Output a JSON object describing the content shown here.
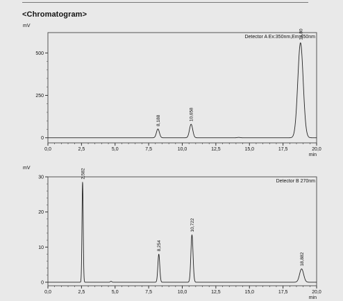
{
  "header": {
    "title": "<Chromatogram>"
  },
  "chart_data": [
    {
      "type": "line",
      "title": "",
      "ylabel": "mV",
      "xlabel": "min",
      "xlim": [
        0,
        20
      ],
      "ylim": [
        -30,
        620
      ],
      "x_ticks": [
        "0,0",
        "2,5",
        "5,0",
        "7,5",
        "10,0",
        "12,5",
        "15,0",
        "17,5",
        "20,0"
      ],
      "y_ticks": [
        0,
        250,
        500
      ],
      "grid": false,
      "legend": "top-right",
      "detector_label": "Detector A Ex:350nm,Em:450nm",
      "peaks": [
        {
          "label": "8,188",
          "rt": 8.188,
          "height": 52,
          "width": 0.11
        },
        {
          "label": "10,658",
          "rt": 10.658,
          "height": 80,
          "width": 0.12
        },
        {
          "label": "18,80",
          "rt": 18.8,
          "height": 560,
          "width": 0.2
        }
      ],
      "minor_bumps": [
        {
          "rt": 14.2,
          "height": 2,
          "width": 0.1
        }
      ]
    },
    {
      "type": "line",
      "title": "",
      "ylabel": "mV",
      "xlabel": "min",
      "xlim": [
        0,
        20
      ],
      "ylim": [
        -1,
        30
      ],
      "x_ticks": [
        "0,0",
        "2,5",
        "5,0",
        "7,5",
        "10,0",
        "12,5",
        "15,0",
        "17,5",
        "20,0"
      ],
      "y_ticks": [
        0,
        10,
        20,
        30
      ],
      "grid": false,
      "legend": "top-right",
      "detector_label": "Detector B 270nm",
      "peaks": [
        {
          "label": "2,582",
          "rt": 2.582,
          "height": 28.5,
          "width": 0.045
        },
        {
          "label": "8,254",
          "rt": 8.254,
          "height": 8,
          "width": 0.07
        },
        {
          "label": "10,722",
          "rt": 10.722,
          "height": 13.5,
          "width": 0.08
        },
        {
          "label": "18,882",
          "rt": 18.882,
          "height": 3.8,
          "width": 0.15
        }
      ],
      "minor_bumps": [
        {
          "rt": 4.7,
          "height": 0.25,
          "width": 0.05
        }
      ]
    }
  ]
}
